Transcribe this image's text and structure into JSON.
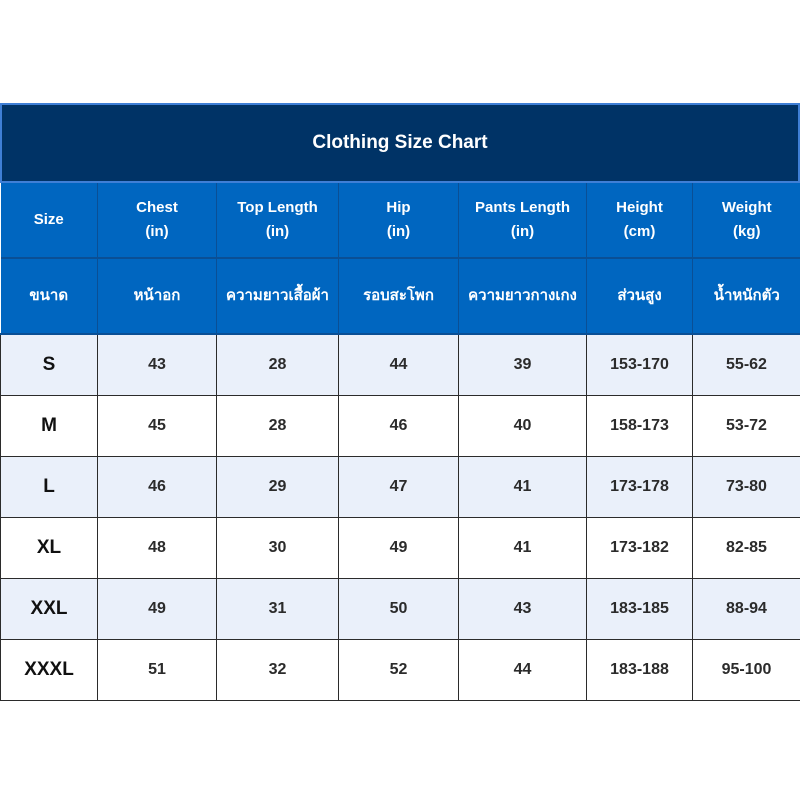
{
  "title": "Clothing Size Chart",
  "header_en": [
    {
      "line1": "Size",
      "line2": ""
    },
    {
      "line1": "Chest",
      "line2": "(in)"
    },
    {
      "line1": "Top Length",
      "line2": "(in)"
    },
    {
      "line1": "Hip",
      "line2": "(in)"
    },
    {
      "line1": "Pants Length",
      "line2": "(in)"
    },
    {
      "line1": "Height",
      "line2": "(cm)"
    },
    {
      "line1": "Weight",
      "line2": "(kg)"
    }
  ],
  "header_th": [
    "ขนาด",
    "หน้าอก",
    "ความยาวเสื้อผ้า",
    "รอบสะโพก",
    "ความยาวกางเกง",
    "ส่วนสูง",
    "น้ำหนักตัว"
  ],
  "rows": [
    [
      "S",
      "43",
      "28",
      "44",
      "39",
      "153-170",
      "55-62"
    ],
    [
      "M",
      "45",
      "28",
      "46",
      "40",
      "158-173",
      "53-72"
    ],
    [
      "L",
      "46",
      "29",
      "47",
      "41",
      "173-178",
      "73-80"
    ],
    [
      "XL",
      "48",
      "30",
      "49",
      "41",
      "173-182",
      "82-85"
    ],
    [
      "XXL",
      "49",
      "31",
      "50",
      "43",
      "183-185",
      "88-94"
    ],
    [
      "XXXL",
      "51",
      "32",
      "52",
      "44",
      "183-188",
      "95-100"
    ]
  ],
  "colors": {
    "title_bg": "#003366",
    "header_bg": "#0066c0",
    "row_alt_bg": "#eaf0fa"
  }
}
